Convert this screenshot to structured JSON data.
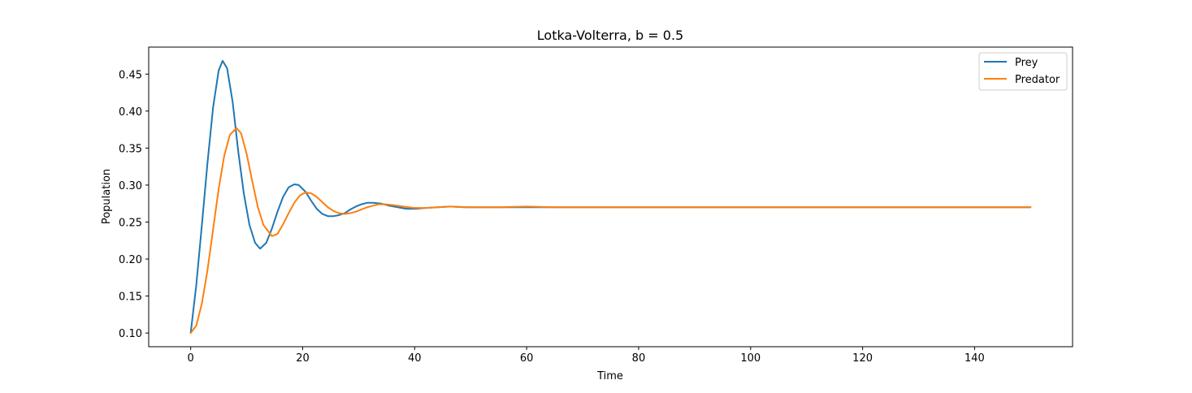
{
  "chart_data": {
    "type": "line",
    "title": "Lotka-Volterra, b = 0.5",
    "xlabel": "Time",
    "ylabel": "Population",
    "xlim": [
      -7.5,
      157.5
    ],
    "ylim": [
      0.0815,
      0.4865
    ],
    "xticks": [
      0,
      20,
      40,
      60,
      80,
      100,
      120,
      140
    ],
    "yticks": [
      0.1,
      0.15,
      0.2,
      0.25,
      0.3,
      0.35,
      0.4,
      0.45
    ],
    "xtick_labels": [
      "0",
      "20",
      "40",
      "60",
      "80",
      "100",
      "120",
      "140"
    ],
    "ytick_labels": [
      "0.10",
      "0.15",
      "0.20",
      "0.25",
      "0.30",
      "0.35",
      "0.40",
      "0.45"
    ],
    "grid": false,
    "legend_position": "top-right",
    "series": [
      {
        "name": "Prey",
        "color": "#1f77b4",
        "x": [
          0,
          1,
          2,
          3,
          4,
          5,
          5.7,
          6.5,
          7.5,
          8.5,
          9.5,
          10.5,
          11.5,
          12.4,
          13.5,
          14.5,
          15.5,
          16.5,
          17.5,
          18.5,
          19.3,
          20.5,
          21.5,
          22.5,
          23.5,
          24.5,
          25.5,
          26.3,
          27.5,
          28.5,
          29.5,
          30.5,
          31.5,
          32.6,
          34,
          35.5,
          37,
          38.5,
          40.1,
          42,
          44,
          46.5,
          49,
          52,
          55,
          60,
          65,
          70,
          80,
          90,
          100,
          110,
          120,
          130,
          140,
          150
        ],
        "y": [
          0.1,
          0.165,
          0.246,
          0.33,
          0.405,
          0.455,
          0.468,
          0.458,
          0.412,
          0.345,
          0.288,
          0.246,
          0.222,
          0.214,
          0.222,
          0.241,
          0.264,
          0.284,
          0.297,
          0.301,
          0.3,
          0.291,
          0.279,
          0.268,
          0.261,
          0.258,
          0.258,
          0.259,
          0.262,
          0.267,
          0.271,
          0.274,
          0.276,
          0.276,
          0.275,
          0.272,
          0.27,
          0.268,
          0.268,
          0.269,
          0.27,
          0.271,
          0.27,
          0.27,
          0.27,
          0.27,
          0.27,
          0.27,
          0.27,
          0.27,
          0.27,
          0.27,
          0.27,
          0.27,
          0.27,
          0.27
        ]
      },
      {
        "name": "Predator",
        "color": "#ff7f0e",
        "x": [
          0,
          1,
          2,
          3,
          4,
          5,
          6,
          7,
          8.2,
          9,
          10,
          11,
          12,
          13,
          14.5,
          15.5,
          16.5,
          17.5,
          18.5,
          19.5,
          20.5,
          21.5,
          22.5,
          23.5,
          24.5,
          25.5,
          26.5,
          27.5,
          28.5,
          29.5,
          30.5,
          31.5,
          32.5,
          33.5,
          34.8,
          36,
          38,
          40,
          42,
          44,
          46,
          50,
          55,
          60,
          65,
          70,
          80,
          90,
          100,
          110,
          120,
          130,
          140,
          150
        ],
        "y": [
          0.1,
          0.11,
          0.14,
          0.185,
          0.24,
          0.295,
          0.34,
          0.368,
          0.377,
          0.37,
          0.342,
          0.305,
          0.27,
          0.246,
          0.231,
          0.234,
          0.247,
          0.262,
          0.276,
          0.286,
          0.29,
          0.289,
          0.284,
          0.277,
          0.27,
          0.265,
          0.262,
          0.261,
          0.262,
          0.264,
          0.267,
          0.27,
          0.272,
          0.274,
          0.274,
          0.273,
          0.271,
          0.269,
          0.269,
          0.27,
          0.271,
          0.27,
          0.27,
          0.271,
          0.27,
          0.27,
          0.27,
          0.27,
          0.27,
          0.27,
          0.27,
          0.27,
          0.27,
          0.27
        ]
      }
    ]
  }
}
